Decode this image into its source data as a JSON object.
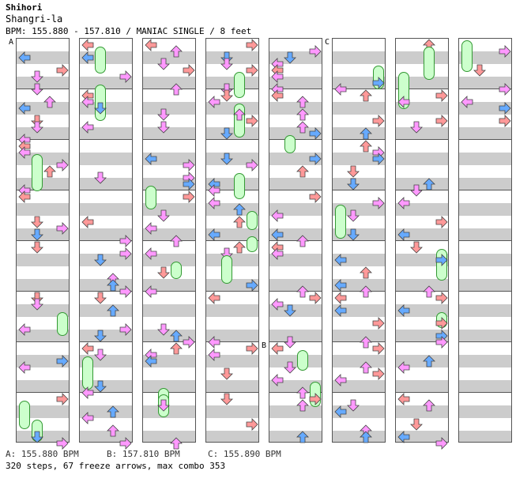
{
  "header": {
    "artist": "Shihori",
    "title": "Shangri-la",
    "info": "BPM: 155.880 - 157.810 / MANIAC SINGLE / 8 feet"
  },
  "markers": [
    "A",
    "B",
    "C"
  ],
  "footer": {
    "bpm_a": "A: 155.880 BPM",
    "bpm_b": "B: 157.810 BPM",
    "bpm_c": "C: 155.890 BPM",
    "summary": "320 steps, 67 freeze arrows, max combo 353"
  },
  "colors": {
    "red_arrow": "#f99",
    "blue_arrow": "#6af",
    "pink_arrow": "#f9f",
    "freeze": "#cfc",
    "grid_stripe": "#cccccc"
  },
  "chart": {
    "columns": 8,
    "lanes": [
      "left",
      "down",
      "up",
      "right"
    ]
  }
}
